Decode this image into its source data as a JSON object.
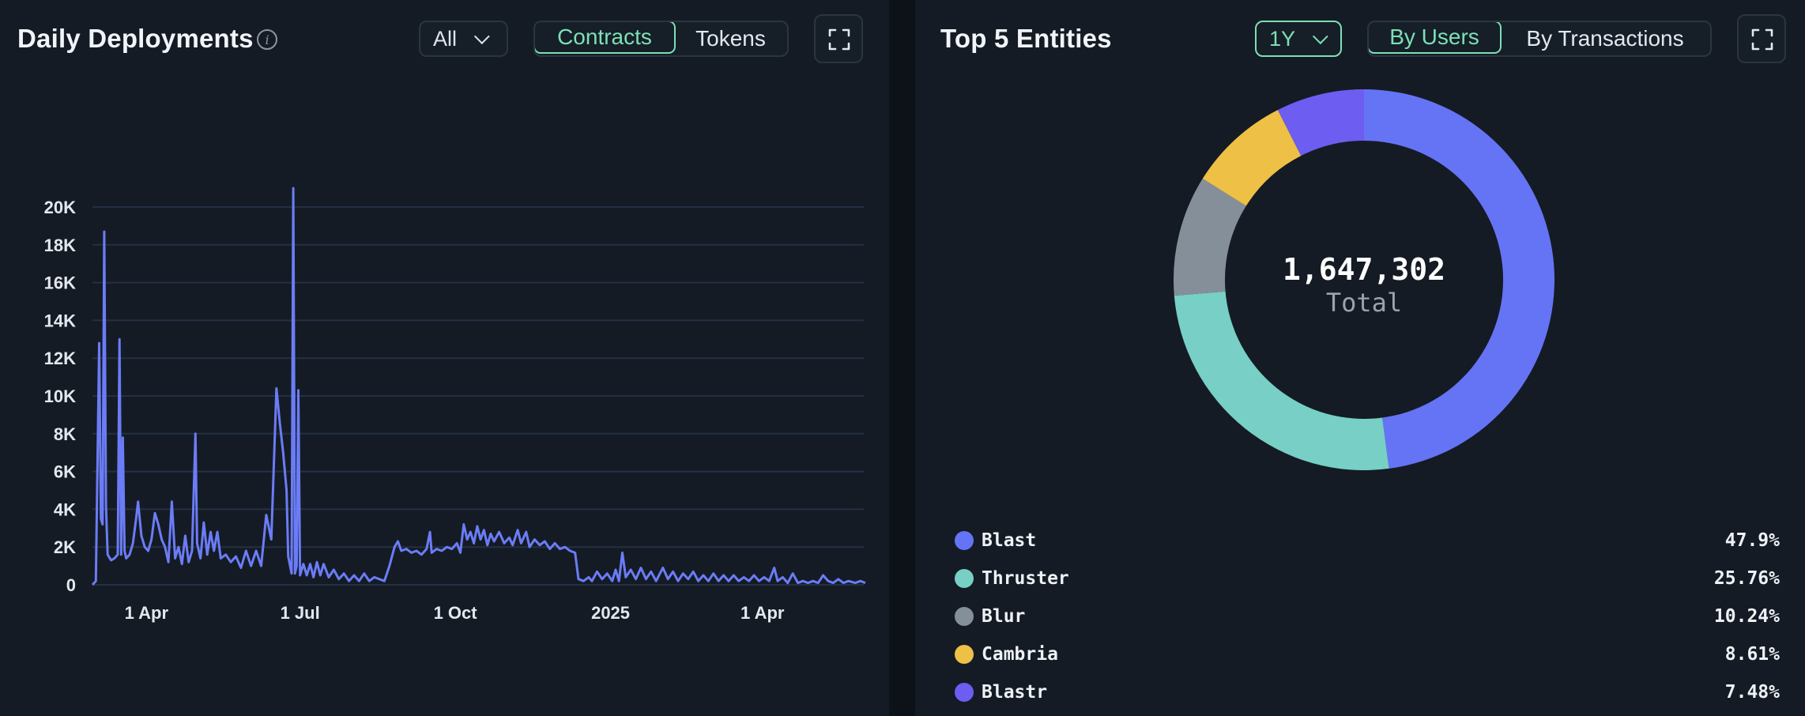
{
  "left": {
    "title": "Daily Deployments",
    "info_icon": "info-icon",
    "range_dropdown": "All",
    "toggle": [
      {
        "label": "Contracts",
        "active": true
      },
      {
        "label": "Tokens",
        "active": false
      }
    ],
    "expand_icon": "expand-icon"
  },
  "right": {
    "title": "Top 5 Entities",
    "range_dropdown": "1Y",
    "toggle": [
      {
        "label": "By Users",
        "active": true
      },
      {
        "label": "By Transactions",
        "active": false
      }
    ],
    "expand_icon": "expand-icon",
    "center_value": "1,647,302",
    "center_label": "Total"
  },
  "chart_data": [
    {
      "type": "line",
      "title": "Daily Deployments",
      "ylim": [
        0,
        20000
      ],
      "yticks": [
        0,
        2000,
        4000,
        6000,
        8000,
        10000,
        12000,
        14000,
        16000,
        18000,
        20000
      ],
      "ytick_labels": [
        "0",
        "2K",
        "4K",
        "6K",
        "8K",
        "10K",
        "12K",
        "14K",
        "16K",
        "18K",
        "20K"
      ],
      "xlim": [
        "2024-02-29",
        "2025-06-01"
      ],
      "xticks": [
        "2024-04-01",
        "2024-07-01",
        "2024-10-01",
        "2025-01-01",
        "2025-04-01"
      ],
      "xtick_labels": [
        "1 Apr",
        "1 Jul",
        "1 Oct",
        "2025",
        "1 Apr"
      ],
      "grid": true,
      "color": "#6b7cf6",
      "series": [
        {
          "values": [
            [
              "2024-02-29",
              0
            ],
            [
              "2024-03-02",
              200
            ],
            [
              "2024-03-04",
              12800
            ],
            [
              "2024-03-05",
              3500
            ],
            [
              "2024-03-06",
              3200
            ],
            [
              "2024-03-07",
              18700
            ],
            [
              "2024-03-08",
              4200
            ],
            [
              "2024-03-09",
              1600
            ],
            [
              "2024-03-11",
              1300
            ],
            [
              "2024-03-13",
              1400
            ],
            [
              "2024-03-15",
              1600
            ],
            [
              "2024-03-16",
              13000
            ],
            [
              "2024-03-17",
              1600
            ],
            [
              "2024-03-18",
              7800
            ],
            [
              "2024-03-19",
              1800
            ],
            [
              "2024-03-20",
              1400
            ],
            [
              "2024-03-22",
              1600
            ],
            [
              "2024-03-24",
              2200
            ],
            [
              "2024-03-26",
              3600
            ],
            [
              "2024-03-27",
              4400
            ],
            [
              "2024-03-29",
              2600
            ],
            [
              "2024-03-31",
              2000
            ],
            [
              "2024-04-02",
              1800
            ],
            [
              "2024-04-04",
              2400
            ],
            [
              "2024-04-06",
              3800
            ],
            [
              "2024-04-08",
              3200
            ],
            [
              "2024-04-10",
              2400
            ],
            [
              "2024-04-12",
              2000
            ],
            [
              "2024-04-14",
              1200
            ],
            [
              "2024-04-16",
              4400
            ],
            [
              "2024-04-18",
              1400
            ],
            [
              "2024-04-20",
              2000
            ],
            [
              "2024-04-22",
              1100
            ],
            [
              "2024-04-24",
              2600
            ],
            [
              "2024-04-26",
              1200
            ],
            [
              "2024-04-28",
              1800
            ],
            [
              "2024-04-30",
              8000
            ],
            [
              "2024-05-01",
              2200
            ],
            [
              "2024-05-03",
              1400
            ],
            [
              "2024-05-05",
              3300
            ],
            [
              "2024-05-07",
              1600
            ],
            [
              "2024-05-09",
              2800
            ],
            [
              "2024-05-11",
              1800
            ],
            [
              "2024-05-13",
              2800
            ],
            [
              "2024-05-15",
              1400
            ],
            [
              "2024-05-18",
              1600
            ],
            [
              "2024-05-21",
              1200
            ],
            [
              "2024-05-24",
              1500
            ],
            [
              "2024-05-27",
              900
            ],
            [
              "2024-05-30",
              1800
            ],
            [
              "2024-06-02",
              1000
            ],
            [
              "2024-06-05",
              1800
            ],
            [
              "2024-06-08",
              1000
            ],
            [
              "2024-06-11",
              3700
            ],
            [
              "2024-06-14",
              2400
            ],
            [
              "2024-06-17",
              10400
            ],
            [
              "2024-06-19",
              8600
            ],
            [
              "2024-06-21",
              7000
            ],
            [
              "2024-06-23",
              5000
            ],
            [
              "2024-06-24",
              1500
            ],
            [
              "2024-06-26",
              600
            ],
            [
              "2024-06-27",
              21000
            ],
            [
              "2024-06-28",
              600
            ],
            [
              "2024-06-29",
              1000
            ],
            [
              "2024-06-30",
              10300
            ],
            [
              "2024-07-01",
              500
            ],
            [
              "2024-07-03",
              1100
            ],
            [
              "2024-07-05",
              500
            ],
            [
              "2024-07-07",
              1100
            ],
            [
              "2024-07-09",
              400
            ],
            [
              "2024-07-11",
              1200
            ],
            [
              "2024-07-13",
              500
            ],
            [
              "2024-07-15",
              1100
            ],
            [
              "2024-07-18",
              400
            ],
            [
              "2024-07-21",
              800
            ],
            [
              "2024-07-24",
              300
            ],
            [
              "2024-07-27",
              600
            ],
            [
              "2024-07-30",
              200
            ],
            [
              "2024-08-02",
              500
            ],
            [
              "2024-08-05",
              200
            ],
            [
              "2024-08-08",
              600
            ],
            [
              "2024-08-11",
              200
            ],
            [
              "2024-08-14",
              400
            ],
            [
              "2024-08-17",
              300
            ],
            [
              "2024-08-20",
              200
            ],
            [
              "2024-08-23",
              1000
            ],
            [
              "2024-08-26",
              2000
            ],
            [
              "2024-08-28",
              2300
            ],
            [
              "2024-08-30",
              1800
            ],
            [
              "2024-09-02",
              1900
            ],
            [
              "2024-09-05",
              1700
            ],
            [
              "2024-09-08",
              1800
            ],
            [
              "2024-09-11",
              1600
            ],
            [
              "2024-09-14",
              1900
            ],
            [
              "2024-09-16",
              2800
            ],
            [
              "2024-09-17",
              1700
            ],
            [
              "2024-09-20",
              1900
            ],
            [
              "2024-09-23",
              1800
            ],
            [
              "2024-09-26",
              2000
            ],
            [
              "2024-09-29",
              1900
            ],
            [
              "2024-10-02",
              2200
            ],
            [
              "2024-10-04",
              1700
            ],
            [
              "2024-10-06",
              3200
            ],
            [
              "2024-10-08",
              2400
            ],
            [
              "2024-10-10",
              2800
            ],
            [
              "2024-10-12",
              2200
            ],
            [
              "2024-10-14",
              3100
            ],
            [
              "2024-10-16",
              2400
            ],
            [
              "2024-10-18",
              2900
            ],
            [
              "2024-10-20",
              2100
            ],
            [
              "2024-10-22",
              2700
            ],
            [
              "2024-10-24",
              2300
            ],
            [
              "2024-10-27",
              2800
            ],
            [
              "2024-10-30",
              2200
            ],
            [
              "2024-11-02",
              2500
            ],
            [
              "2024-11-04",
              2100
            ],
            [
              "2024-11-07",
              2900
            ],
            [
              "2024-11-09",
              2200
            ],
            [
              "2024-11-12",
              2800
            ],
            [
              "2024-11-14",
              2000
            ],
            [
              "2024-11-17",
              2400
            ],
            [
              "2024-11-20",
              2100
            ],
            [
              "2024-11-23",
              2300
            ],
            [
              "2024-11-26",
              1900
            ],
            [
              "2024-11-29",
              2200
            ],
            [
              "2024-12-02",
              1900
            ],
            [
              "2024-12-05",
              2000
            ],
            [
              "2024-12-08",
              1800
            ],
            [
              "2024-12-11",
              1700
            ],
            [
              "2024-12-13",
              300
            ],
            [
              "2024-12-16",
              200
            ],
            [
              "2024-12-19",
              400
            ],
            [
              "2024-12-21",
              200
            ],
            [
              "2024-12-24",
              700
            ],
            [
              "2024-12-27",
              300
            ],
            [
              "2024-12-30",
              600
            ],
            [
              "2025-01-02",
              200
            ],
            [
              "2025-01-04",
              800
            ],
            [
              "2025-01-06",
              200
            ],
            [
              "2025-01-08",
              1700
            ],
            [
              "2025-01-10",
              400
            ],
            [
              "2025-01-13",
              800
            ],
            [
              "2025-01-16",
              300
            ],
            [
              "2025-01-19",
              900
            ],
            [
              "2025-01-22",
              300
            ],
            [
              "2025-01-25",
              700
            ],
            [
              "2025-01-28",
              200
            ],
            [
              "2025-02-01",
              900
            ],
            [
              "2025-02-04",
              300
            ],
            [
              "2025-02-07",
              700
            ],
            [
              "2025-02-10",
              200
            ],
            [
              "2025-02-13",
              600
            ],
            [
              "2025-02-16",
              300
            ],
            [
              "2025-02-19",
              700
            ],
            [
              "2025-02-22",
              200
            ],
            [
              "2025-02-25",
              500
            ],
            [
              "2025-02-28",
              200
            ],
            [
              "2025-03-03",
              600
            ],
            [
              "2025-03-06",
              200
            ],
            [
              "2025-03-09",
              500
            ],
            [
              "2025-03-12",
              200
            ],
            [
              "2025-03-15",
              500
            ],
            [
              "2025-03-18",
              200
            ],
            [
              "2025-03-21",
              400
            ],
            [
              "2025-03-24",
              200
            ],
            [
              "2025-03-27",
              500
            ],
            [
              "2025-03-30",
              200
            ],
            [
              "2025-04-02",
              400
            ],
            [
              "2025-04-05",
              200
            ],
            [
              "2025-04-08",
              900
            ],
            [
              "2025-04-10",
              200
            ],
            [
              "2025-04-13",
              400
            ],
            [
              "2025-04-16",
              100
            ],
            [
              "2025-04-19",
              600
            ],
            [
              "2025-04-22",
              100
            ],
            [
              "2025-04-25",
              200
            ],
            [
              "2025-04-28",
              100
            ],
            [
              "2025-05-01",
              200
            ],
            [
              "2025-05-04",
              100
            ],
            [
              "2025-05-07",
              500
            ],
            [
              "2025-05-10",
              200
            ],
            [
              "2025-05-13",
              100
            ],
            [
              "2025-05-16",
              300
            ],
            [
              "2025-05-19",
              100
            ],
            [
              "2025-05-22",
              200
            ],
            [
              "2025-05-26",
              100
            ],
            [
              "2025-05-29",
              200
            ],
            [
              "2025-06-01",
              100
            ]
          ]
        }
      ]
    },
    {
      "type": "pie",
      "title": "Top 5 Entities",
      "total": "1,647,302",
      "center_label": "Total",
      "legend_position": "bottom",
      "categories": [
        "Blast",
        "Thruster",
        "Blur",
        "Cambria",
        "Blastr"
      ],
      "values": [
        47.9,
        25.76,
        10.24,
        8.61,
        7.48
      ],
      "labels": [
        "47.9%",
        "25.76%",
        "10.24%",
        "8.61%",
        "7.48%"
      ],
      "colors": [
        "#6574f5",
        "#77cfc5",
        "#858f9a",
        "#eec045",
        "#6d5df0"
      ]
    }
  ]
}
